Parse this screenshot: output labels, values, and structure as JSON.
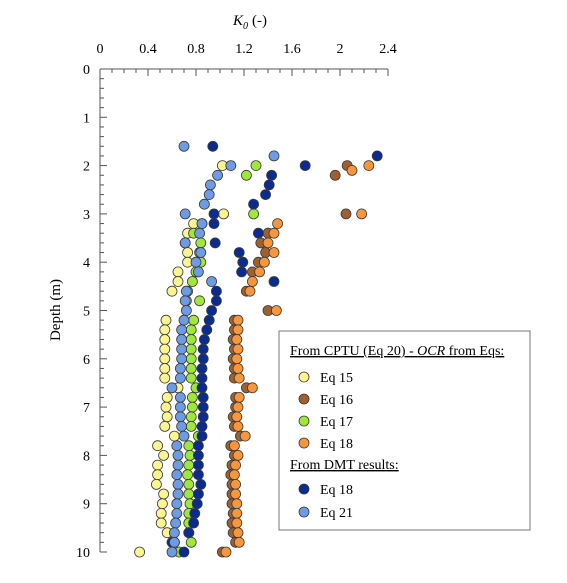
{
  "chart_data": {
    "type": "scatter",
    "title": "",
    "xlabel_symbol": "K",
    "xlabel_subscript": "0",
    "xlabel_unit": "(-)",
    "ylabel": "Depth (m)",
    "xlim": [
      0,
      2.4
    ],
    "ylim": [
      0,
      10
    ],
    "x_ticks": [
      "0",
      "0.4",
      "0.8",
      "1.2",
      "1.6",
      "2",
      "2.4"
    ],
    "y_ticks": [
      "0",
      "1",
      "2",
      "3",
      "4",
      "5",
      "6",
      "7",
      "8",
      "9",
      "10"
    ],
    "x_axis_position": "top",
    "y_axis_inverted": true,
    "grid": false,
    "legend_position": "right",
    "legend": {
      "heading_cptu_prefix": "From CPTU (Eq 20) - ",
      "heading_cptu_italic": "OCR",
      "heading_cptu_suffix": " from Eqs:",
      "heading_dmt": "From DMT results:"
    },
    "series": [
      {
        "name": "Eq 15",
        "group": "cptu",
        "color": "#fdf58f",
        "points": [
          [
            1.02,
            2.0
          ],
          [
            1.03,
            3.0
          ],
          [
            0.78,
            3.2
          ],
          [
            0.73,
            3.4
          ],
          [
            0.71,
            3.6
          ],
          [
            0.73,
            3.8
          ],
          [
            0.73,
            4.0
          ],
          [
            0.65,
            4.2
          ],
          [
            0.65,
            4.4
          ],
          [
            0.6,
            4.6
          ],
          [
            0.72,
            4.8
          ],
          [
            0.55,
            5.2
          ],
          [
            0.54,
            5.4
          ],
          [
            0.54,
            5.6
          ],
          [
            0.54,
            5.8
          ],
          [
            0.54,
            6.0
          ],
          [
            0.54,
            6.2
          ],
          [
            0.54,
            6.4
          ],
          [
            0.65,
            6.6
          ],
          [
            0.56,
            6.8
          ],
          [
            0.55,
            7.0
          ],
          [
            0.56,
            7.2
          ],
          [
            0.54,
            7.4
          ],
          [
            0.62,
            7.6
          ],
          [
            0.48,
            7.8
          ],
          [
            0.53,
            8.0
          ],
          [
            0.48,
            8.2
          ],
          [
            0.48,
            8.4
          ],
          [
            0.47,
            8.6
          ],
          [
            0.53,
            8.8
          ],
          [
            0.52,
            9.0
          ],
          [
            0.51,
            9.2
          ],
          [
            0.51,
            9.4
          ],
          [
            0.56,
            9.6
          ],
          [
            0.62,
            9.8
          ],
          [
            0.33,
            10.0
          ]
        ]
      },
      {
        "name": "Eq 16",
        "group": "cptu",
        "color": "#a0602e",
        "points": [
          [
            2.06,
            2.0
          ],
          [
            1.96,
            2.2
          ],
          [
            2.05,
            3.0
          ],
          [
            1.4,
            3.4
          ],
          [
            1.34,
            3.6
          ],
          [
            1.38,
            3.8
          ],
          [
            1.32,
            4.0
          ],
          [
            1.27,
            4.2
          ],
          [
            1.22,
            4.6
          ],
          [
            1.4,
            5.0
          ],
          [
            1.12,
            5.2
          ],
          [
            1.12,
            5.4
          ],
          [
            1.11,
            5.6
          ],
          [
            1.12,
            5.8
          ],
          [
            1.11,
            6.0
          ],
          [
            1.12,
            6.2
          ],
          [
            1.12,
            6.4
          ],
          [
            1.22,
            6.6
          ],
          [
            1.13,
            6.8
          ],
          [
            1.13,
            7.0
          ],
          [
            1.11,
            7.2
          ],
          [
            1.12,
            7.4
          ],
          [
            1.17,
            7.6
          ],
          [
            1.09,
            7.8
          ],
          [
            1.12,
            8.0
          ],
          [
            1.1,
            8.2
          ],
          [
            1.09,
            8.4
          ],
          [
            1.1,
            8.6
          ],
          [
            1.1,
            8.8
          ],
          [
            1.1,
            9.0
          ],
          [
            1.11,
            9.2
          ],
          [
            1.1,
            9.4
          ],
          [
            1.11,
            9.6
          ],
          [
            1.13,
            9.8
          ],
          [
            1.02,
            10.0
          ]
        ]
      },
      {
        "name": "Eq 17",
        "group": "cptu",
        "color": "#9ee83c",
        "points": [
          [
            1.3,
            2.0
          ],
          [
            1.22,
            2.2
          ],
          [
            1.28,
            3.0
          ],
          [
            0.85,
            3.2
          ],
          [
            0.78,
            3.4
          ],
          [
            0.84,
            3.6
          ],
          [
            0.83,
            3.8
          ],
          [
            0.84,
            4.0
          ],
          [
            0.8,
            4.2
          ],
          [
            0.77,
            4.4
          ],
          [
            0.73,
            4.6
          ],
          [
            0.83,
            4.8
          ],
          [
            0.78,
            5.2
          ],
          [
            0.76,
            5.4
          ],
          [
            0.76,
            5.6
          ],
          [
            0.76,
            5.8
          ],
          [
            0.76,
            6.0
          ],
          [
            0.76,
            6.2
          ],
          [
            0.76,
            6.4
          ],
          [
            0.8,
            6.6
          ],
          [
            0.77,
            6.8
          ],
          [
            0.77,
            7.0
          ],
          [
            0.76,
            7.2
          ],
          [
            0.76,
            7.4
          ],
          [
            0.82,
            7.6
          ],
          [
            0.74,
            7.8
          ],
          [
            0.75,
            8.0
          ],
          [
            0.74,
            8.2
          ],
          [
            0.73,
            8.4
          ],
          [
            0.74,
            8.6
          ],
          [
            0.74,
            8.8
          ],
          [
            0.75,
            9.0
          ],
          [
            0.74,
            9.2
          ],
          [
            0.74,
            9.4
          ],
          [
            0.74,
            9.6
          ],
          [
            0.76,
            9.8
          ],
          [
            0.66,
            10.0
          ]
        ]
      },
      {
        "name": "Eq 18",
        "group": "cptu",
        "color": "#f7963c",
        "points": [
          [
            2.24,
            2.0
          ],
          [
            2.1,
            2.1
          ],
          [
            2.18,
            3.0
          ],
          [
            1.48,
            3.2
          ],
          [
            1.45,
            3.4
          ],
          [
            1.4,
            3.6
          ],
          [
            1.45,
            3.8
          ],
          [
            1.37,
            4.0
          ],
          [
            1.33,
            4.2
          ],
          [
            1.27,
            4.4
          ],
          [
            1.25,
            4.6
          ],
          [
            1.47,
            5.0
          ],
          [
            1.15,
            5.2
          ],
          [
            1.15,
            5.4
          ],
          [
            1.14,
            5.6
          ],
          [
            1.15,
            5.8
          ],
          [
            1.14,
            6.0
          ],
          [
            1.15,
            6.2
          ],
          [
            1.16,
            6.4
          ],
          [
            1.27,
            6.6
          ],
          [
            1.16,
            6.8
          ],
          [
            1.15,
            7.0
          ],
          [
            1.14,
            7.2
          ],
          [
            1.15,
            7.4
          ],
          [
            1.21,
            7.6
          ],
          [
            1.12,
            7.8
          ],
          [
            1.15,
            8.0
          ],
          [
            1.13,
            8.2
          ],
          [
            1.12,
            8.4
          ],
          [
            1.13,
            8.6
          ],
          [
            1.13,
            8.8
          ],
          [
            1.14,
            9.0
          ],
          [
            1.14,
            9.2
          ],
          [
            1.14,
            9.4
          ],
          [
            1.15,
            9.6
          ],
          [
            1.16,
            9.8
          ],
          [
            1.05,
            10.0
          ]
        ]
      },
      {
        "name": "Eq 18",
        "group": "dmt",
        "color": "#0b2c8f",
        "points": [
          [
            0.94,
            1.6
          ],
          [
            2.31,
            1.8
          ],
          [
            1.71,
            2.0
          ],
          [
            1.43,
            2.2
          ],
          [
            1.41,
            2.4
          ],
          [
            1.38,
            2.6
          ],
          [
            1.28,
            2.8
          ],
          [
            0.95,
            3.0
          ],
          [
            0.95,
            3.2
          ],
          [
            1.32,
            3.4
          ],
          [
            0.96,
            3.6
          ],
          [
            1.16,
            3.8
          ],
          [
            1.19,
            4.0
          ],
          [
            1.18,
            4.2
          ],
          [
            1.45,
            4.4
          ],
          [
            0.97,
            4.6
          ],
          [
            0.97,
            4.8
          ],
          [
            0.93,
            5.0
          ],
          [
            0.91,
            5.2
          ],
          [
            0.89,
            5.4
          ],
          [
            0.87,
            5.6
          ],
          [
            0.86,
            5.8
          ],
          [
            0.86,
            6.0
          ],
          [
            0.85,
            6.2
          ],
          [
            0.85,
            6.4
          ],
          [
            0.85,
            6.6
          ],
          [
            0.86,
            6.8
          ],
          [
            0.86,
            7.0
          ],
          [
            0.86,
            7.2
          ],
          [
            0.85,
            7.4
          ],
          [
            0.85,
            7.6
          ],
          [
            0.82,
            7.8
          ],
          [
            0.82,
            8.0
          ],
          [
            0.82,
            8.2
          ],
          [
            0.82,
            8.4
          ],
          [
            0.84,
            8.6
          ],
          [
            0.82,
            8.8
          ],
          [
            0.81,
            9.0
          ],
          [
            0.79,
            9.2
          ],
          [
            0.78,
            9.4
          ],
          [
            0.74,
            9.6
          ],
          [
            0.6,
            9.8
          ],
          [
            0.7,
            10.0
          ]
        ]
      },
      {
        "name": "Eq 21",
        "group": "dmt",
        "color": "#6d9be4",
        "points": [
          [
            0.7,
            1.6
          ],
          [
            1.45,
            1.8
          ],
          [
            1.09,
            2.0
          ],
          [
            0.98,
            2.2
          ],
          [
            0.92,
            2.4
          ],
          [
            0.91,
            2.6
          ],
          [
            0.87,
            2.8
          ],
          [
            0.71,
            3.0
          ],
          [
            0.85,
            3.2
          ],
          [
            0.83,
            3.4
          ],
          [
            0.71,
            3.6
          ],
          [
            0.84,
            3.8
          ],
          [
            0.8,
            4.0
          ],
          [
            0.82,
            4.2
          ],
          [
            0.93,
            4.4
          ],
          [
            0.72,
            4.6
          ],
          [
            0.71,
            4.8
          ],
          [
            0.72,
            5.0
          ],
          [
            0.7,
            5.2
          ],
          [
            0.68,
            5.4
          ],
          [
            0.68,
            5.6
          ],
          [
            0.68,
            5.8
          ],
          [
            0.68,
            6.0
          ],
          [
            0.67,
            6.2
          ],
          [
            0.67,
            6.4
          ],
          [
            0.6,
            6.6
          ],
          [
            0.67,
            6.8
          ],
          [
            0.67,
            7.0
          ],
          [
            0.67,
            7.2
          ],
          [
            0.68,
            7.4
          ],
          [
            0.7,
            7.6
          ],
          [
            0.64,
            7.8
          ],
          [
            0.65,
            8.0
          ],
          [
            0.65,
            8.2
          ],
          [
            0.64,
            8.4
          ],
          [
            0.65,
            8.6
          ],
          [
            0.65,
            8.8
          ],
          [
            0.64,
            9.0
          ],
          [
            0.64,
            9.2
          ],
          [
            0.63,
            9.4
          ],
          [
            0.62,
            9.6
          ],
          [
            0.62,
            9.8
          ],
          [
            0.6,
            10.0
          ]
        ]
      }
    ]
  }
}
